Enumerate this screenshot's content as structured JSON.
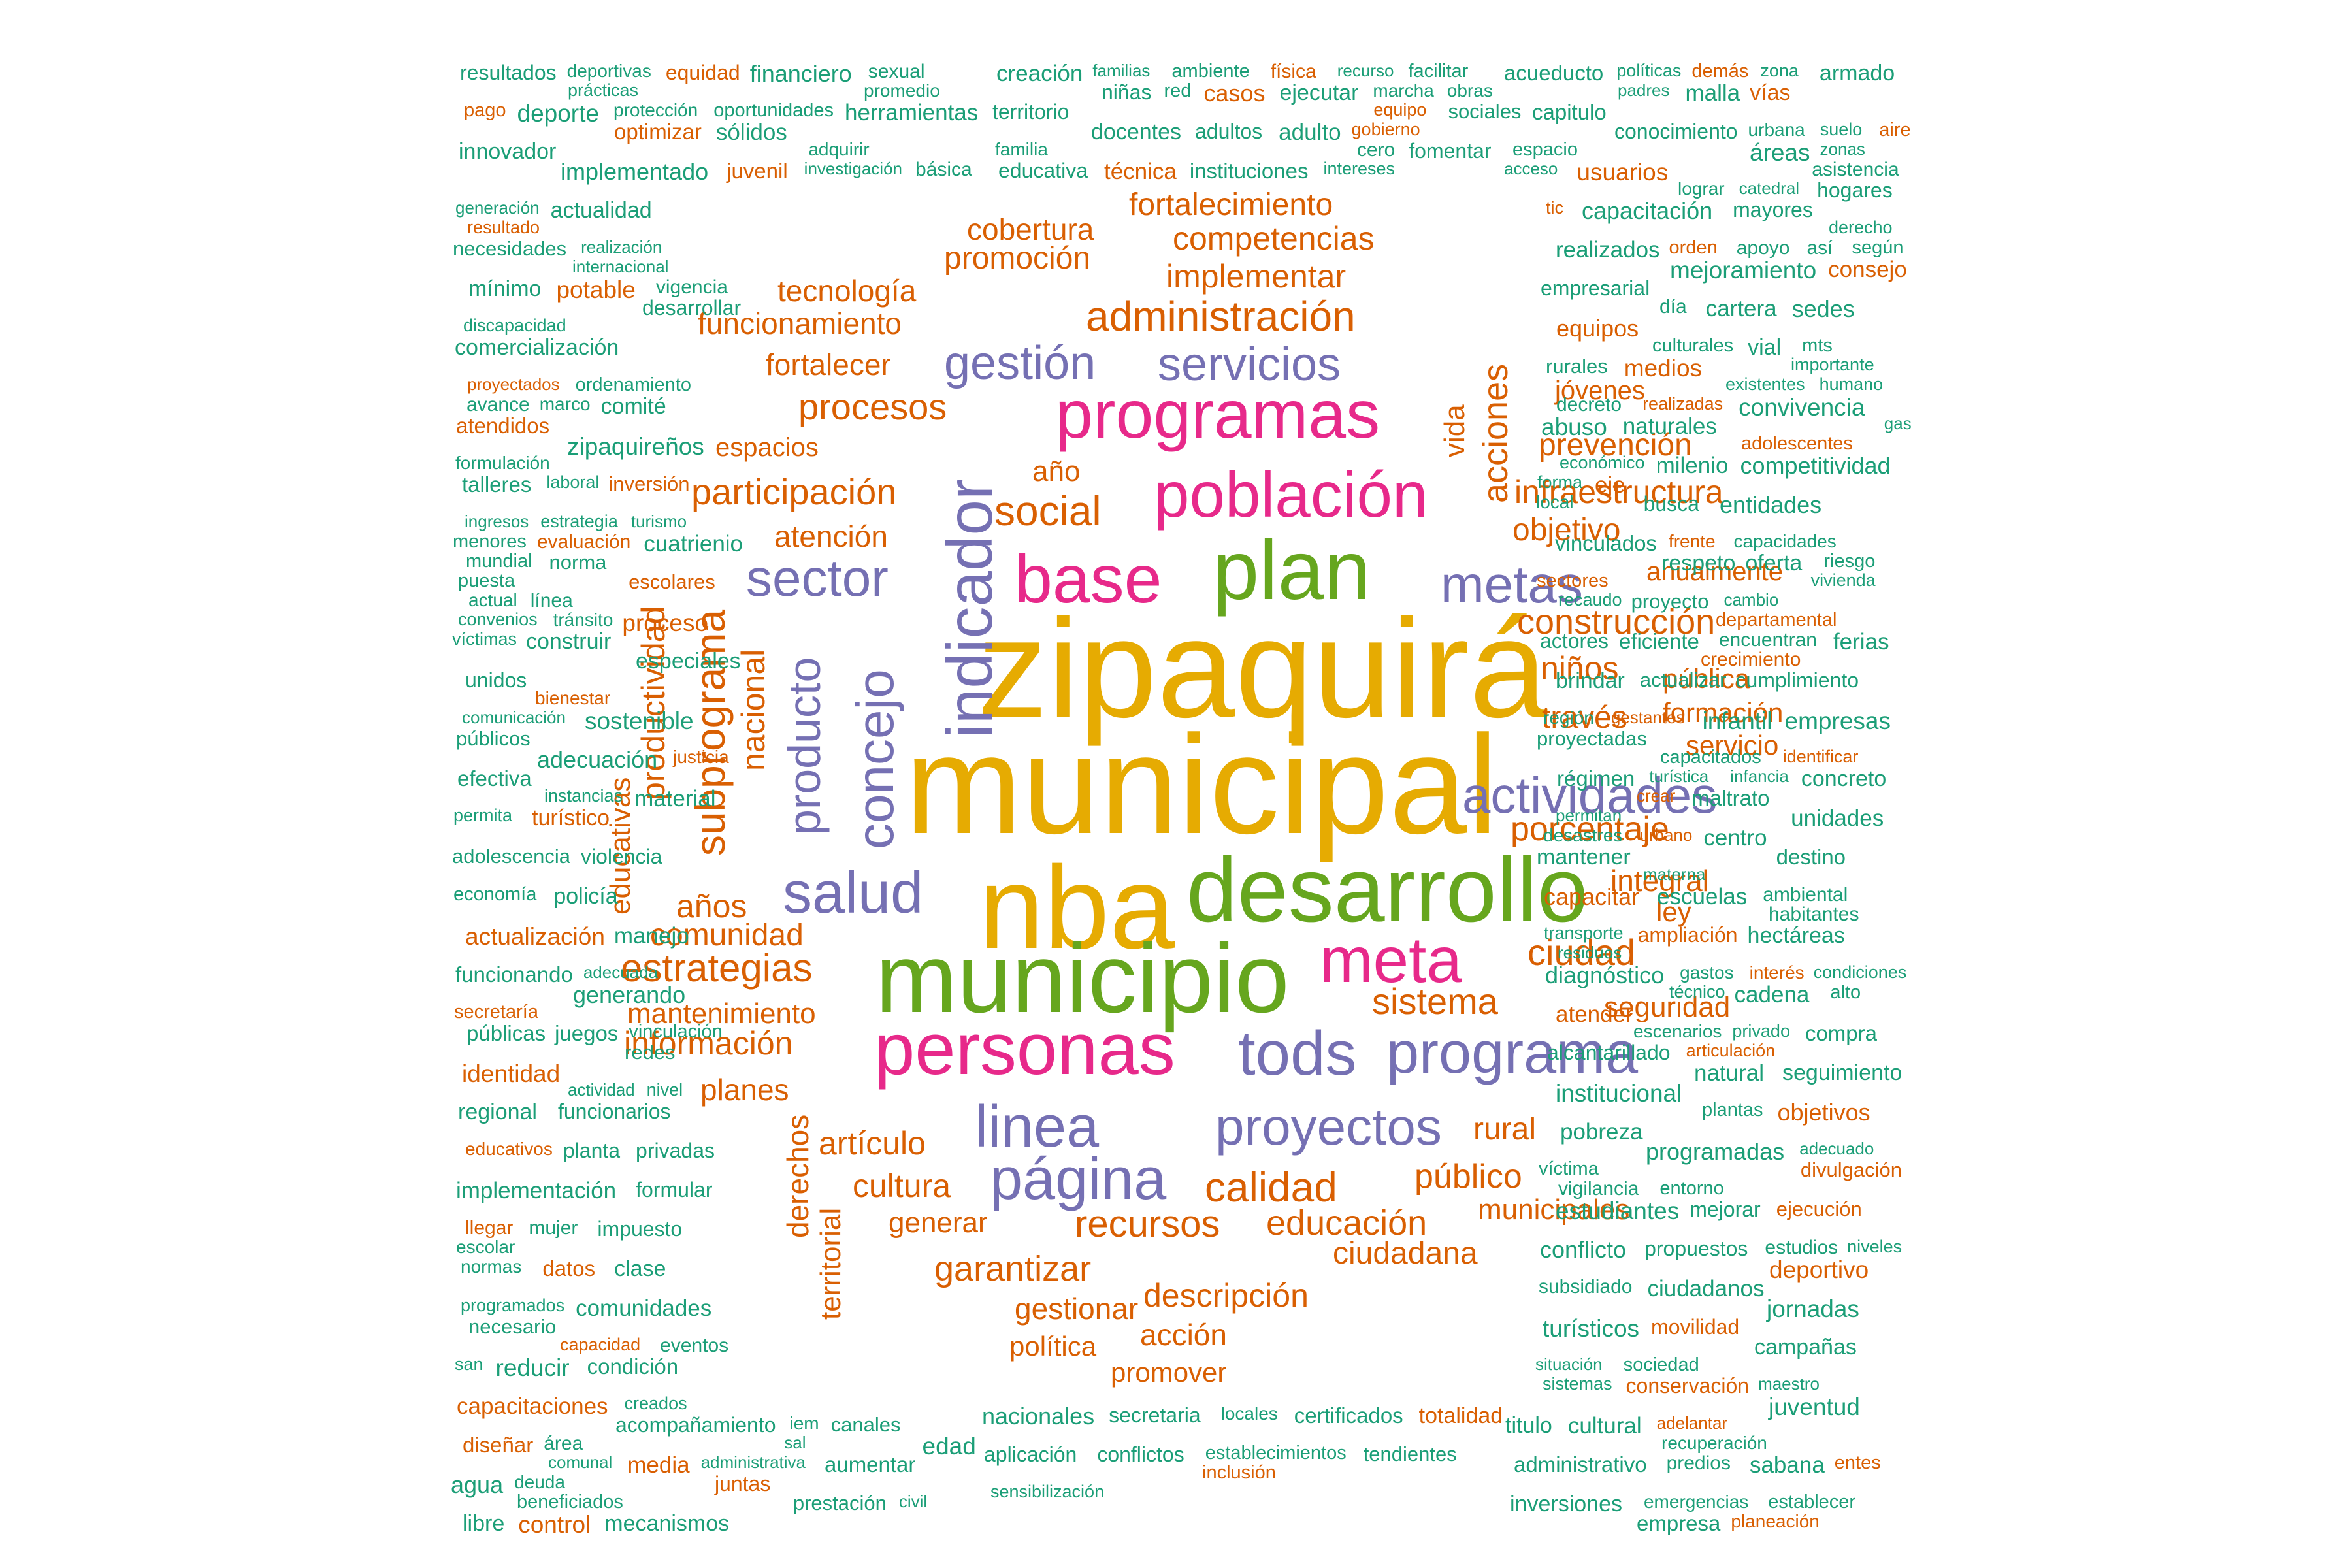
{
  "colors": {
    "teal": "#1b9e77",
    "orange": "#d95f02",
    "purple": "#7570b3",
    "magenta": "#e7298a",
    "green": "#66a61e",
    "gold": "#e6ab02"
  },
  "words": [
    "zipaquirá",
    "municipal",
    "nba",
    "municipio",
    "desarrollo",
    "plan",
    "personas",
    "base",
    "meta",
    "población",
    "programas",
    "indicador",
    "tods",
    "linea",
    "página",
    "proyectos",
    "programa",
    "actividades",
    "sector",
    "salud",
    "metas",
    "concejo",
    "gestión",
    "servicios",
    "producto",
    "administración",
    "subprograma",
    "estrategias",
    "calidad",
    "recursos",
    "educación",
    "sistema",
    "ciudad",
    "construcción",
    "participación",
    "procesos",
    "social",
    "infraestructura",
    "porcentaje",
    "niños",
    "través",
    "artículo",
    "público",
    "garantizar",
    "descripción",
    "información",
    "comunidad",
    "años",
    "ciudadana",
    "objetivo",
    "prevención",
    "atención",
    "fortalecimiento",
    "competencias",
    "implementar",
    "promoción",
    "cobertura",
    "funcionamiento",
    "tecnología",
    "fortalecer",
    "acciones",
    "productividad",
    "nacional",
    "derechos",
    "territorial",
    "rural",
    "cultura",
    "generar",
    "gestionar",
    "mantenimiento",
    "planes",
    "espacios",
    "seguridad",
    "integral",
    "educativas",
    "vida",
    "año",
    "formación",
    "pública",
    "servicio",
    "anualmente",
    "acción",
    "política",
    "promover",
    "municipales",
    "jóvenes",
    "ley",
    "resultados",
    "deportivas",
    "equidad",
    "financiero",
    "sexual",
    "prácticas",
    "promedio",
    "pago",
    "deporte",
    "protección",
    "oportunidades",
    "herramientas",
    "optimizar",
    "sólidos",
    "innovador",
    "adquirir",
    "implementado",
    "juvenil",
    "investigación",
    "básica",
    "generación",
    "actualidad",
    "resultado",
    "necesidades",
    "realización",
    "internacional",
    "mínimo",
    "potable",
    "vigencia",
    "desarrollar",
    "discapacidad",
    "comercialización",
    "proyectados",
    "ordenamiento",
    "avance",
    "marco",
    "comité",
    "atendidos",
    "zipaquireños",
    "formulación",
    "talleres",
    "laboral",
    "inversión",
    "ingresos",
    "estrategia",
    "turismo",
    "menores",
    "evaluación",
    "cuatrienio",
    "mundial",
    "norma",
    "puesta",
    "escolares",
    "actual",
    "línea",
    "convenios",
    "tránsito",
    "proceso",
    "víctimas",
    "construir",
    "especiales",
    "unidos",
    "bienestar",
    "comunicación",
    "sostenible",
    "públicos",
    "adecuación",
    "justicia",
    "efectiva",
    "instancias",
    "material",
    "permita",
    "turístico",
    "adolescencia",
    "violencia",
    "economía",
    "policía",
    "actualización",
    "manejo",
    "funcionando",
    "adecuada",
    "generando",
    "secretaría",
    "públicas",
    "juegos",
    "vinculación",
    "redes",
    "identidad",
    "actividad",
    "nivel",
    "regional",
    "funcionarios",
    "educativos",
    "planta",
    "privadas",
    "implementación",
    "formular",
    "llegar",
    "mujer",
    "impuesto",
    "escolar",
    "normas",
    "datos",
    "clase",
    "programados",
    "comunidades",
    "necesario",
    "capacidad",
    "eventos",
    "san",
    "reducir",
    "condición",
    "capacitaciones",
    "creados",
    "acompañamiento",
    "iem",
    "canales",
    "diseñar",
    "área",
    "sal",
    "edad",
    "comunal",
    "media",
    "administrativa",
    "aumentar",
    "agua",
    "deuda",
    "juntas",
    "beneficiados",
    "prestación",
    "civil",
    "libre",
    "control",
    "mecanismos",
    "creación",
    "familias",
    "ambiente",
    "física",
    "recurso",
    "facilitar",
    "niñas",
    "red",
    "casos",
    "ejecutar",
    "marcha",
    "obras",
    "territorio",
    "equipo",
    "sociales",
    "docentes",
    "adultos",
    "adulto",
    "gobierno",
    "familia",
    "cero",
    "fomentar",
    "educativa",
    "técnica",
    "instituciones",
    "intereses",
    "acueducto",
    "políticas",
    "demás",
    "zona",
    "armado",
    "padres",
    "malla",
    "vías",
    "capitulo",
    "conocimiento",
    "urbana",
    "suelo",
    "aire",
    "espacio",
    "áreas",
    "zonas",
    "acceso",
    "usuarios",
    "asistencia",
    "lograr",
    "catedral",
    "hogares",
    "tic",
    "capacitación",
    "mayores",
    "derecho",
    "realizados",
    "orden",
    "apoyo",
    "así",
    "según",
    "mejoramiento",
    "consejo",
    "empresarial",
    "día",
    "cartera",
    "sedes",
    "equipos",
    "culturales",
    "vial",
    "mts",
    "rurales",
    "medios",
    "importante",
    "existentes",
    "humano",
    "decreto",
    "realizadas",
    "convivencia",
    "abuso",
    "naturales",
    "gas",
    "adolescentes",
    "económico",
    "milenio",
    "competitividad",
    "forma",
    "eje",
    "local",
    "busca",
    "entidades",
    "vinculados",
    "frente",
    "capacidades",
    "respeto",
    "oferta",
    "riesgo",
    "sectores",
    "vivienda",
    "recaudo",
    "proyecto",
    "cambio",
    "departamental",
    "actores",
    "eficiente",
    "encuentran",
    "ferias",
    "crecimiento",
    "brindar",
    "actualizar",
    "cumplimiento",
    "región",
    "gestantes",
    "infantil",
    "empresas",
    "proyectadas",
    "capacitados",
    "identificar",
    "régimen",
    "turística",
    "infancia",
    "concreto",
    "crear",
    "maltrato",
    "permitan",
    "unidades",
    "desastres",
    "urbano",
    "centro",
    "mantener",
    "destino",
    "materna",
    "capacitar",
    "escuelas",
    "ambiental",
    "habitantes",
    "transporte",
    "ampliación",
    "hectáreas",
    "residuos",
    "diagnóstico",
    "gastos",
    "interés",
    "condiciones",
    "técnico",
    "cadena",
    "alto",
    "atender",
    "escenarios",
    "privado",
    "compra",
    "alcantarillado",
    "articulación",
    "natural",
    "seguimiento",
    "institucional",
    "plantas",
    "objetivos",
    "pobreza",
    "programadas",
    "adecuado",
    "víctima",
    "divulgación",
    "vigilancia",
    "entorno",
    "estudiantes",
    "mejorar",
    "ejecución",
    "conflicto",
    "propuestos",
    "estudios",
    "niveles",
    "deportivo",
    "subsidiado",
    "ciudadanos",
    "jornadas",
    "turísticos",
    "movilidad",
    "campañas",
    "situación",
    "sociedad",
    "sistemas",
    "conservación",
    "maestro",
    "juventud",
    "titulo",
    "cultural",
    "adelantar",
    "recuperación",
    "administrativo",
    "predios",
    "sabana",
    "entes",
    "inversiones",
    "emergencias",
    "establecer",
    "empresa",
    "planeación",
    "nacionales",
    "secretaria",
    "locales",
    "certificados",
    "totalidad",
    "aplicación",
    "conflictos",
    "establecimientos",
    "tendientes",
    "inclusión",
    "sensibilización"
  ]
}
